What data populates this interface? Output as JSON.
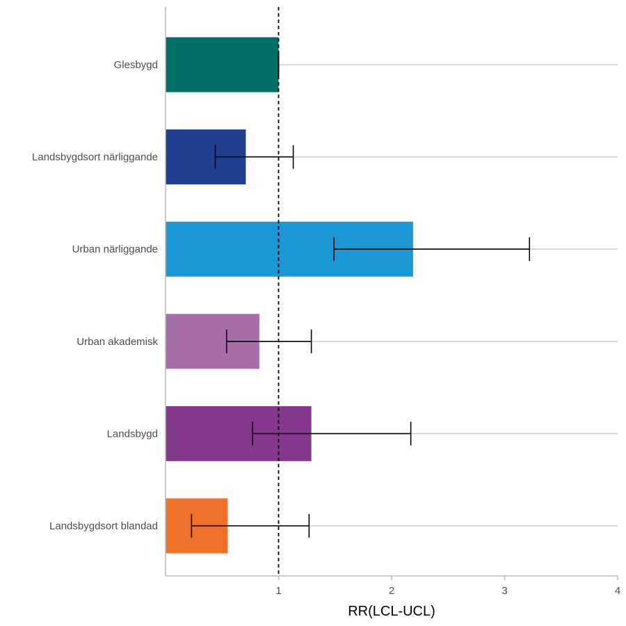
{
  "chart_data": {
    "type": "bar",
    "orientation": "horizontal",
    "title": "",
    "xlabel": "RR(LCL-UCL)",
    "ylabel": "",
    "xlim": [
      0,
      4
    ],
    "x_ticks": [
      1,
      2,
      3,
      4
    ],
    "reference_line": 1,
    "grid": "horizontal major lines",
    "legend": "none",
    "categories": [
      "Glesbygd",
      "Landsbygdsort närliggande",
      "Urban närliggande",
      "Urban akademisk",
      "Landsbygd",
      "Landsbygdsort blandad"
    ],
    "values": [
      1.0,
      0.71,
      2.19,
      0.83,
      1.29,
      0.55
    ],
    "lcl": [
      1.0,
      0.44,
      1.49,
      0.54,
      0.77,
      0.23
    ],
    "ucl": [
      1.0,
      1.13,
      3.22,
      1.29,
      2.17,
      1.27
    ],
    "colors": [
      "#007066",
      "#1f3f91",
      "#1c97d5",
      "#a66daa",
      "#83388b",
      "#ee712a"
    ]
  }
}
